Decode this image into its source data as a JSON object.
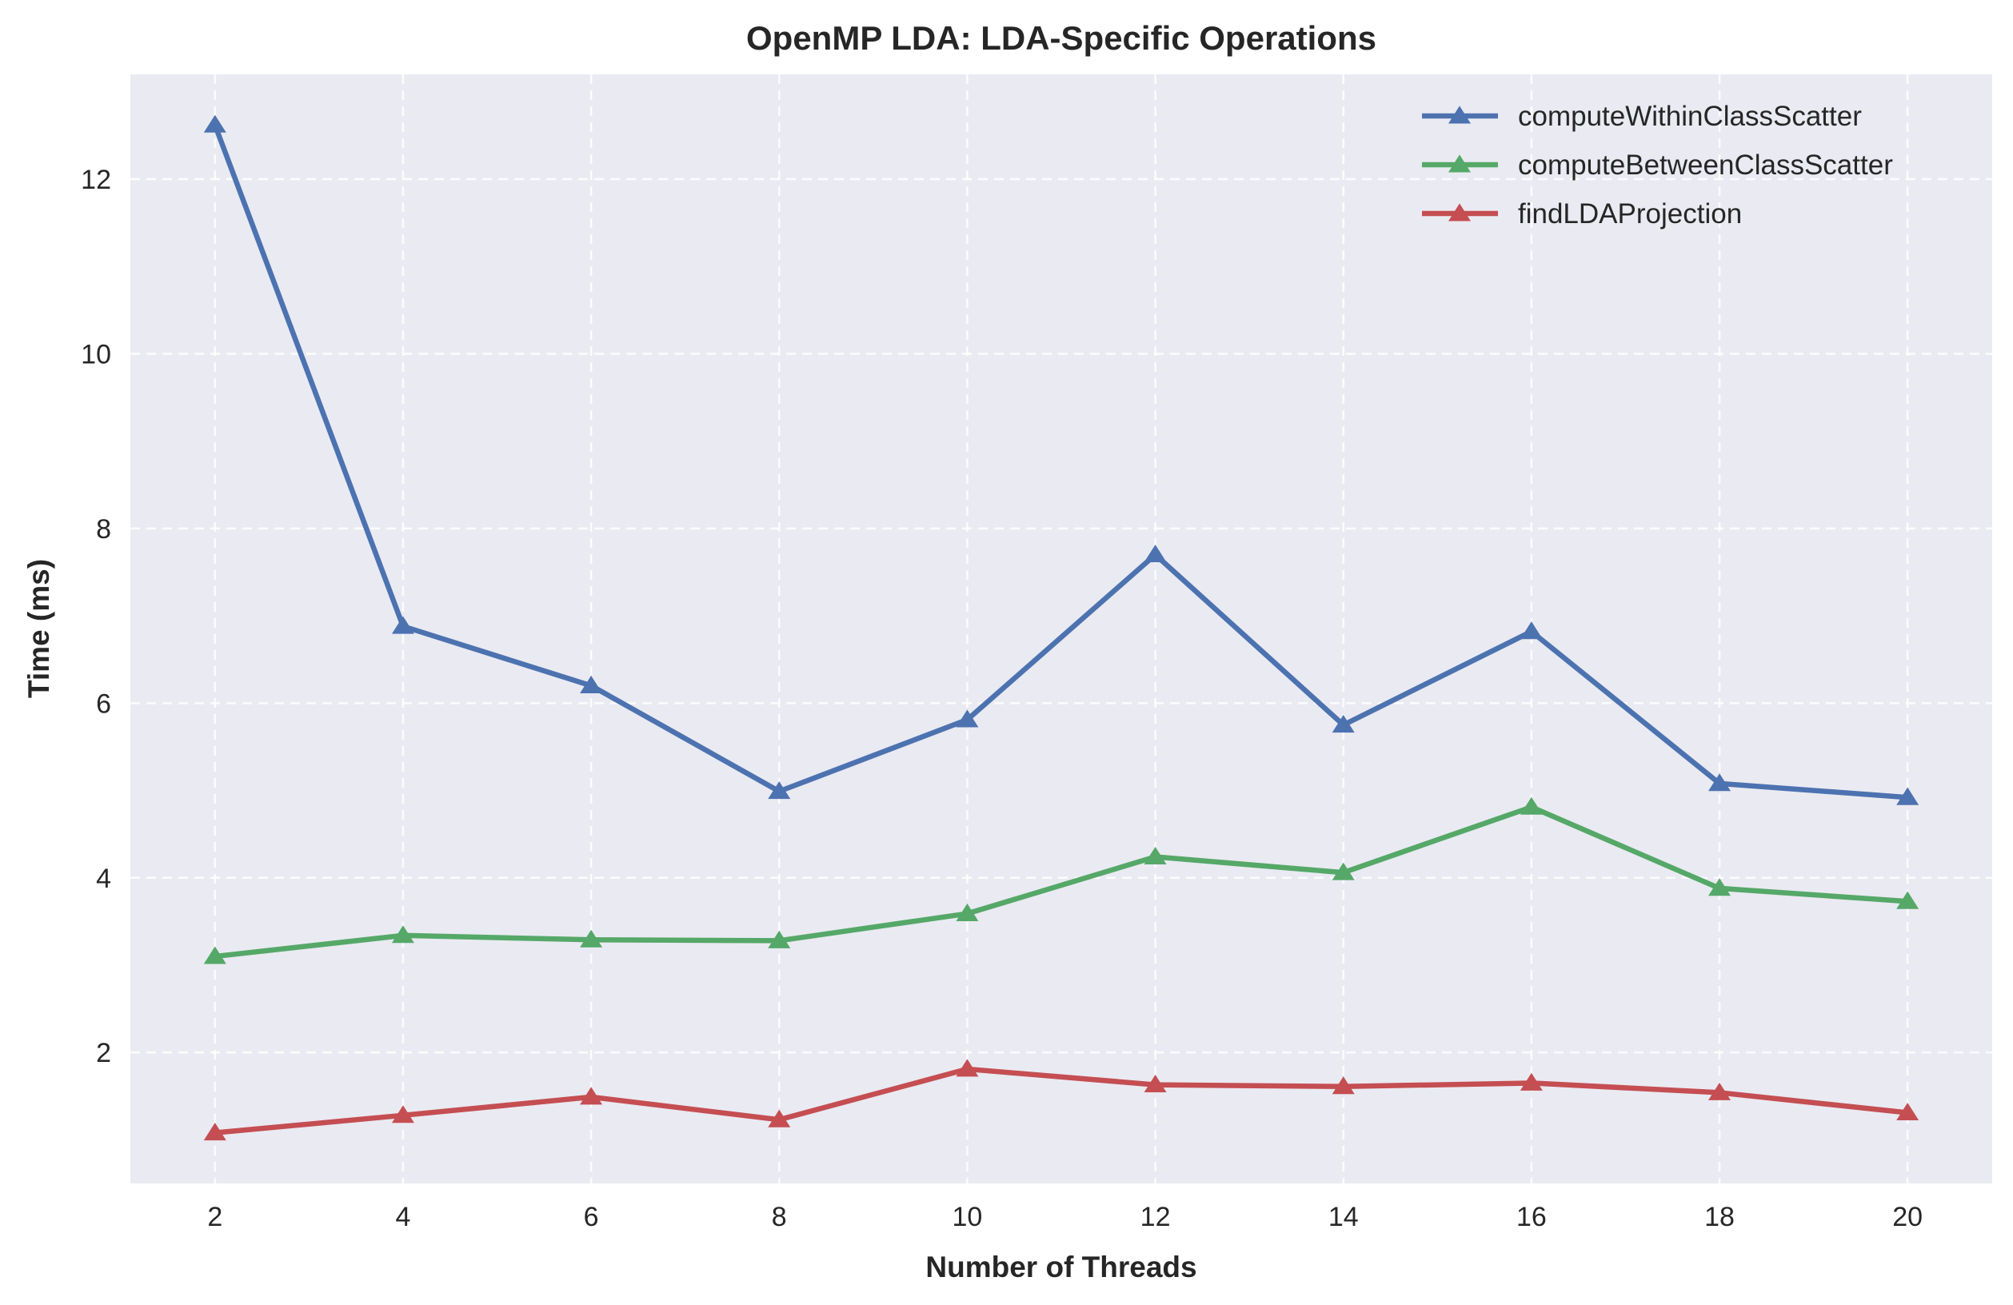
{
  "chart_data": {
    "type": "line",
    "title": "OpenMP LDA: LDA-Specific Operations",
    "xlabel": "Number of Threads",
    "ylabel": "Time (ms)",
    "x": [
      2,
      4,
      6,
      8,
      10,
      12,
      14,
      16,
      18,
      20
    ],
    "xlim": [
      1.1,
      20.9
    ],
    "ylim": [
      0.5,
      13.2
    ],
    "xticks": [
      2,
      4,
      6,
      8,
      10,
      12,
      14,
      16,
      18,
      20
    ],
    "yticks": [
      2,
      4,
      6,
      8,
      10,
      12
    ],
    "grid": true,
    "legend_position": "top-right",
    "marker": "triangle-up",
    "series": [
      {
        "name": "computeWithinClassScatter",
        "color": "#4c72b0",
        "values": [
          12.62,
          6.88,
          6.2,
          4.99,
          5.81,
          7.7,
          5.75,
          6.82,
          5.08,
          4.92
        ]
      },
      {
        "name": "computeBetweenClassScatter",
        "color": "#55a868",
        "values": [
          3.1,
          3.34,
          3.29,
          3.28,
          3.59,
          4.24,
          4.06,
          4.81,
          3.88,
          3.73
        ]
      },
      {
        "name": "findLDAProjection",
        "color": "#c44e52",
        "values": [
          1.08,
          1.28,
          1.49,
          1.23,
          1.81,
          1.63,
          1.61,
          1.65,
          1.54,
          1.31
        ]
      }
    ],
    "background_color": "#eaeaf2"
  }
}
